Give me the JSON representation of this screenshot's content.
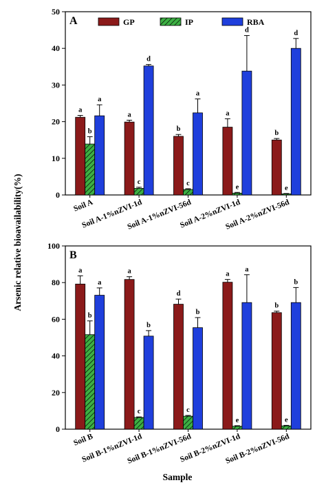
{
  "ylabel": "Arsenic relative bioavailability(%)",
  "xlabel": "Sample",
  "colors": {
    "GP": "#8b1a1a",
    "IP": "#3cb043",
    "RBA": "#1f3fdc",
    "hatch": "#000000"
  },
  "chart_data": [
    {
      "type": "bar",
      "panel": "A",
      "categories": [
        "Soil A",
        "Soil A-1%nZVI-1d",
        "Soil A-1%nZVI-56d",
        "Soil A-2%nZVI-1d",
        "Soil A-2%nZVI-56d"
      ],
      "ylim": [
        0,
        50
      ],
      "yticks": [
        "0",
        "10",
        "20",
        "30",
        "40",
        "50"
      ],
      "legend": {
        "placement": "top",
        "entries": [
          "GP",
          "IP",
          "RBA"
        ]
      },
      "series": [
        {
          "name": "GP",
          "values": [
            21.2,
            19.9,
            16.0,
            18.5,
            15.0
          ],
          "errors": [
            0.5,
            0.5,
            0.5,
            2.3,
            0.4
          ],
          "labels": [
            "a",
            "a",
            "b",
            "a",
            "b"
          ]
        },
        {
          "name": "IP",
          "values": [
            13.9,
            1.8,
            1.5,
            0.5,
            0.3
          ],
          "errors": [
            2.0,
            0.3,
            0.2,
            0.2,
            0.1
          ],
          "labels": [
            "b",
            "c",
            "c",
            "e",
            "e"
          ]
        },
        {
          "name": "RBA",
          "values": [
            21.6,
            35.2,
            22.4,
            33.8,
            40.0
          ],
          "errors": [
            3.0,
            0.4,
            3.8,
            9.7,
            2.7
          ],
          "labels": [
            "a",
            "d",
            "a",
            "d",
            "d"
          ]
        }
      ]
    },
    {
      "type": "bar",
      "panel": "B",
      "categories": [
        "Soil B",
        "Soil B-1%nZVI-1d",
        "Soil B-1%nZVI-56d",
        "Soil B-2%nZVI-1d",
        "Soil B-2%nZVI-56d"
      ],
      "ylim": [
        0,
        100
      ],
      "yticks": [
        "0",
        "20",
        "40",
        "60",
        "80",
        "100"
      ],
      "series": [
        {
          "name": "GP",
          "values": [
            79.2,
            81.7,
            68.2,
            80.2,
            63.6
          ],
          "errors": [
            4.5,
            1.5,
            2.8,
            1.5,
            0.8
          ],
          "labels": [
            "a",
            "a",
            "d",
            "a",
            "b"
          ]
        },
        {
          "name": "IP",
          "values": [
            51.6,
            6.4,
            7.1,
            1.6,
            1.8
          ],
          "errors": [
            7.5,
            0.3,
            0.4,
            0.3,
            0.3
          ],
          "labels": [
            "b",
            "c",
            "c",
            "e",
            "e"
          ]
        },
        {
          "name": "RBA",
          "values": [
            73.1,
            50.8,
            55.4,
            69.1,
            69.1
          ],
          "errors": [
            4.0,
            3.0,
            5.5,
            15.2,
            8.2
          ],
          "labels": [
            "a",
            "b",
            "b",
            "a",
            "b"
          ]
        }
      ]
    }
  ]
}
